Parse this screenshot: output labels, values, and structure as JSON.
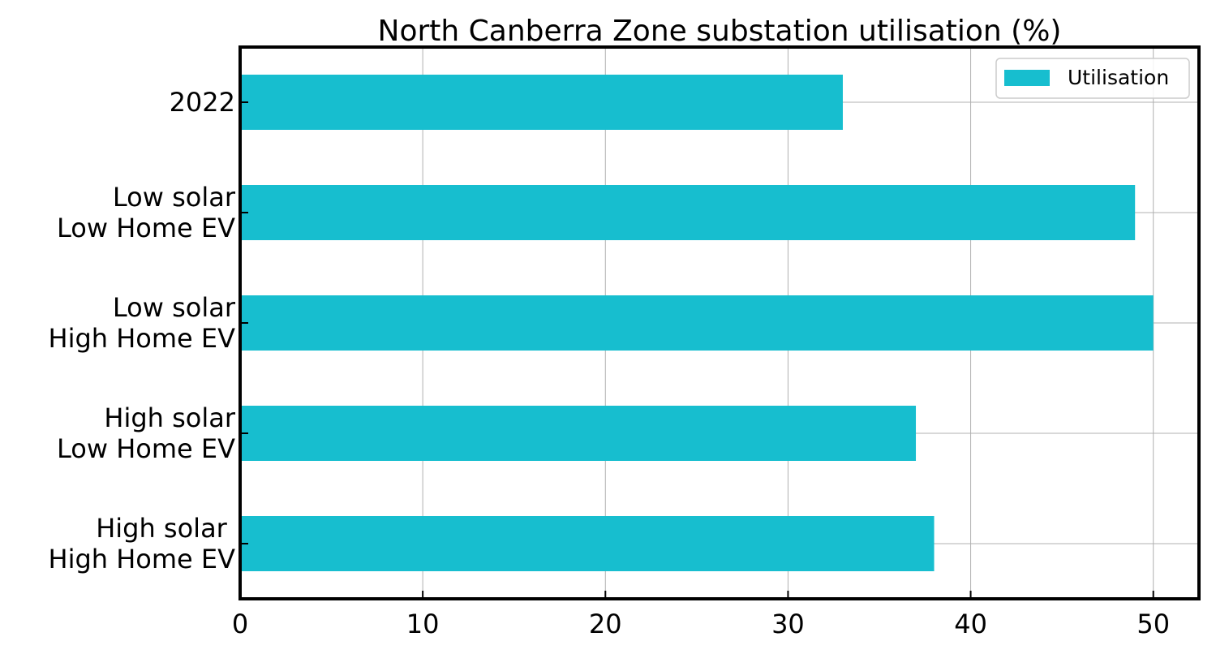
{
  "chart_data": {
    "type": "bar",
    "orientation": "horizontal",
    "title": "North Canberra Zone substation utilisation (%)",
    "xlabel": "",
    "ylabel": "",
    "categories": [
      [
        "2022"
      ],
      [
        "Low solar",
        "Low Home EV"
      ],
      [
        "Low solar",
        "High Home EV"
      ],
      [
        "High solar",
        "Low Home EV"
      ],
      [
        "High solar ",
        "High Home EV"
      ]
    ],
    "series": [
      {
        "name": "Utilisation",
        "color": "#17becf",
        "values": [
          33,
          49,
          50,
          37,
          38
        ]
      }
    ],
    "xlim": [
      0,
      52.5
    ],
    "xticks": [
      0,
      10,
      20,
      30,
      40,
      50
    ],
    "grid": true,
    "legend_position": "top-right"
  }
}
